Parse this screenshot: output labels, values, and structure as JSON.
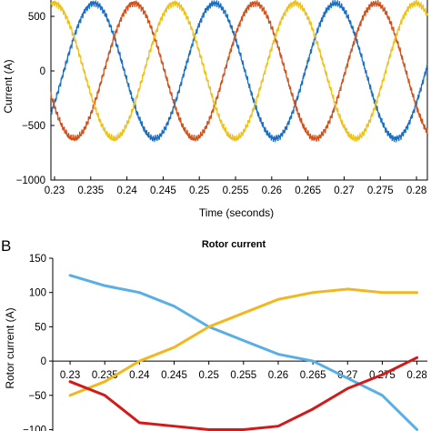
{
  "chart_data": [
    {
      "type": "line",
      "panel_label": "",
      "xlabel": "Time (seconds)",
      "ylabel": "Current (A)",
      "xlim": [
        0.2295,
        0.2815
      ],
      "ylim": [
        -1000,
        900
      ],
      "x_ticks": [
        "0.23",
        "0.235",
        "0.24",
        "0.245",
        "0.25",
        "0.255",
        "0.26",
        "0.265",
        "0.27",
        "0.275",
        "0.28"
      ],
      "y_ticks": [
        "500",
        "0",
        "−500",
        "−1000"
      ],
      "series": [
        {
          "color": "#1a6fc2",
          "amplitude": 620,
          "frequency_hz": 60,
          "phase_deg": 44,
          "peak_time_s": 0.2359
        },
        {
          "color": "#d1521d",
          "amplitude": 620,
          "frequency_hz": 60,
          "phase_deg": -76,
          "peak_time_s": 0.2415
        },
        {
          "color": "#edc11a",
          "amplitude": 620,
          "frequency_hz": 60,
          "phase_deg": 164,
          "peak_time_s": 0.247
        }
      ]
    },
    {
      "type": "line",
      "panel_label": "B",
      "title": "Rotor current",
      "xlabel": "",
      "ylabel": "Rotor current (A)",
      "xlim": [
        0.2275,
        0.2815
      ],
      "ylim": [
        -110,
        150
      ],
      "x_ticks": [
        "0.23",
        "0.235",
        "0.24",
        "0.245",
        "0.25",
        "0.255",
        "0.26",
        "0.265",
        "0.27",
        "0.275",
        "0.28"
      ],
      "y_ticks": [
        "150",
        "100",
        "50",
        "0",
        "−50",
        "−100"
      ],
      "x": [
        0.23,
        0.235,
        0.24,
        0.245,
        0.25,
        0.255,
        0.26,
        0.265,
        0.27,
        0.275,
        0.28
      ],
      "series": [
        {
          "color": "#5aaee6",
          "values": [
            125,
            110,
            100,
            80,
            50,
            30,
            10,
            0,
            -25,
            -50,
            -100
          ]
        },
        {
          "color": "#f2b71e",
          "values": [
            -50,
            -30,
            0,
            20,
            50,
            70,
            90,
            100,
            105,
            100,
            100
          ]
        },
        {
          "color": "#d11b1b",
          "values": [
            -30,
            -50,
            -90,
            -95,
            -100,
            -100,
            -95,
            -70,
            -40,
            -20,
            5
          ]
        }
      ]
    }
  ]
}
